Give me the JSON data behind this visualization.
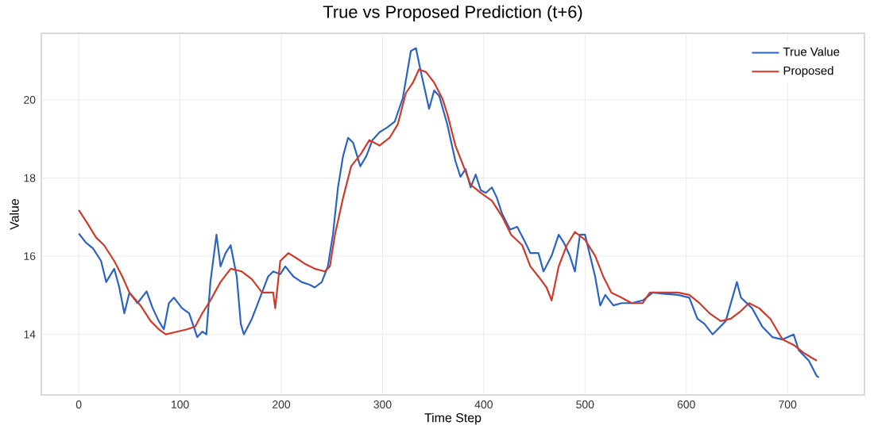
{
  "chart_data": {
    "type": "line",
    "title": "True vs Proposed Prediction (t+6)",
    "xlabel": "Time Step",
    "ylabel": "Value",
    "xlim": [
      -37,
      776
    ],
    "ylim": [
      12.45,
      21.7
    ],
    "xticks": [
      0,
      100,
      200,
      300,
      400,
      500,
      600,
      700
    ],
    "yticks": [
      14,
      16,
      18,
      20
    ],
    "grid": true,
    "legend": "top right",
    "line_style": "solid",
    "marker": "none",
    "series": [
      {
        "name": "True Value",
        "color": "#2a63c4",
        "x": [
          0,
          7,
          14,
          22,
          27,
          35,
          40,
          45,
          50,
          58,
          67,
          73,
          79,
          84,
          89,
          94,
          102,
          109,
          117,
          122,
          126,
          130,
          136,
          140,
          145,
          150,
          156,
          160,
          163,
          171,
          179,
          187,
          192,
          199,
          204,
          212,
          220,
          228,
          233,
          240,
          246,
          251,
          256,
          261,
          266,
          271,
          278,
          284,
          290,
          297,
          305,
          312,
          320,
          328,
          333,
          338,
          346,
          351,
          356,
          364,
          372,
          377,
          382,
          387,
          392,
          397,
          402,
          408,
          413,
          418,
          426,
          433,
          441,
          446,
          454,
          459,
          467,
          474,
          479,
          485,
          490,
          495,
          500,
          505,
          510,
          515,
          520,
          528,
          536,
          546,
          557,
          567,
          577,
          592,
          603,
          611,
          618,
          626,
          631,
          639,
          650,
          654,
          665,
          675,
          685,
          695,
          706,
          711,
          721,
          729,
          731
        ],
        "values": [
          16.58,
          16.35,
          16.2,
          15.88,
          15.34,
          15.68,
          15.2,
          14.54,
          15.07,
          14.8,
          15.1,
          14.67,
          14.34,
          14.13,
          14.8,
          14.94,
          14.67,
          14.54,
          13.93,
          14.07,
          14.0,
          15.34,
          16.55,
          15.74,
          16.08,
          16.28,
          15.48,
          14.27,
          14.0,
          14.4,
          14.94,
          15.48,
          15.61,
          15.54,
          15.74,
          15.48,
          15.34,
          15.27,
          15.2,
          15.34,
          15.74,
          16.55,
          17.76,
          18.56,
          19.03,
          18.9,
          18.3,
          18.56,
          18.97,
          19.17,
          19.3,
          19.44,
          20.04,
          21.25,
          21.32,
          20.7,
          19.77,
          20.24,
          20.1,
          19.37,
          18.43,
          18.03,
          18.23,
          17.76,
          18.09,
          17.69,
          17.62,
          17.76,
          17.49,
          17.09,
          16.68,
          16.75,
          16.35,
          16.08,
          16.08,
          15.61,
          16.01,
          16.55,
          16.35,
          16.01,
          15.61,
          16.55,
          16.55,
          16.01,
          15.48,
          14.74,
          15.01,
          14.74,
          14.8,
          14.8,
          14.87,
          15.07,
          15.04,
          15.01,
          14.94,
          14.4,
          14.27,
          14.0,
          14.13,
          14.34,
          15.34,
          14.94,
          14.67,
          14.2,
          13.93,
          13.87,
          14.0,
          13.6,
          13.33,
          12.93,
          12.9
        ]
      },
      {
        "name": "Proposed",
        "color": "#cf3b2a",
        "x": [
          0,
          9,
          17,
          25,
          35,
          43,
          50,
          61,
          71,
          79,
          86,
          97,
          107,
          115,
          122,
          130,
          140,
          150,
          161,
          171,
          181,
          192,
          194,
          199,
          207,
          215,
          223,
          233,
          243,
          248,
          253,
          261,
          269,
          279,
          287,
          297,
          307,
          315,
          323,
          330,
          336,
          343,
          351,
          359,
          364,
          372,
          380,
          387,
          397,
          408,
          418,
          427,
          438,
          446,
          454,
          462,
          467,
          474,
          482,
          490,
          500,
          510,
          518,
          526,
          536,
          546,
          557,
          564,
          577,
          592,
          603,
          613,
          623,
          634,
          644,
          654,
          662,
          672,
          683,
          695,
          706,
          716,
          724,
          729
        ],
        "values": [
          17.18,
          16.82,
          16.48,
          16.28,
          15.88,
          15.48,
          15.07,
          14.74,
          14.34,
          14.13,
          14.0,
          14.07,
          14.13,
          14.2,
          14.54,
          14.87,
          15.34,
          15.68,
          15.61,
          15.41,
          15.07,
          15.07,
          14.67,
          15.88,
          16.08,
          15.95,
          15.81,
          15.68,
          15.61,
          15.74,
          16.55,
          17.49,
          18.3,
          18.63,
          18.97,
          18.83,
          19.03,
          19.37,
          20.17,
          20.44,
          20.78,
          20.71,
          20.44,
          20.04,
          19.64,
          18.83,
          18.3,
          17.83,
          17.62,
          17.42,
          17.02,
          16.55,
          16.28,
          15.74,
          15.48,
          15.2,
          14.87,
          15.74,
          16.28,
          16.62,
          16.42,
          16.01,
          15.48,
          15.07,
          14.94,
          14.8,
          14.8,
          15.07,
          15.07,
          15.07,
          15.01,
          14.8,
          14.54,
          14.34,
          14.4,
          14.6,
          14.8,
          14.67,
          14.4,
          13.87,
          13.73,
          13.53,
          13.4,
          13.33
        ]
      }
    ]
  }
}
